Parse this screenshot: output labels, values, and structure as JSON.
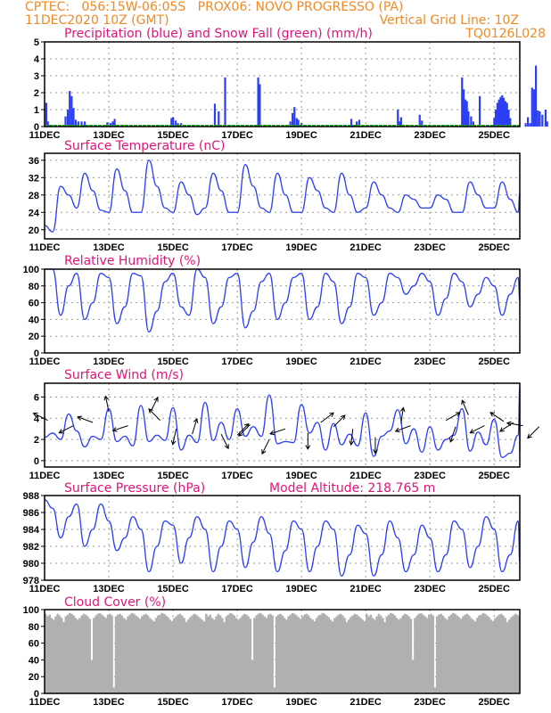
{
  "header": {
    "line1_left": "CPTEC:   056:15W-06:05S   PROX06: NOVO PROGRESSO (PA)",
    "line2_left": "11DEC2020 10Z (GMT)",
    "line2_right": "Vertical Grid Line: 10Z",
    "line3_right": "TQ0126L028",
    "model_altitude": "Model Altitude: 218.765 m"
  },
  "colors": {
    "header": "#f08a24",
    "title": "#e0157a",
    "line": "#2c3ff5",
    "snow": "#1fae1f",
    "cloud": "#b0b0b0",
    "arrow": "#000000"
  },
  "x_axis": {
    "start": "11DEC2020 10Z",
    "days_span": 14.8,
    "tick_days": [
      0,
      2,
      4,
      6,
      8,
      10,
      12,
      14
    ],
    "tick_labels": [
      "11DEC",
      "13DEC",
      "15DEC",
      "17DEC",
      "19DEC",
      "21DEC",
      "23DEC",
      "25DEC"
    ]
  },
  "chart_data": [
    {
      "type": "bar",
      "title": "Precipitation (blue) and Snow Fall (green) (mm/h)",
      "ylim": [
        0,
        5
      ],
      "yticks": [
        0,
        1,
        2,
        3,
        4,
        5
      ],
      "x_unit": "days since 11DEC 10Z",
      "bars": [
        [
          0.05,
          1.4
        ],
        [
          0.1,
          0.3
        ],
        [
          0.2,
          0.1
        ],
        [
          0.65,
          0.6
        ],
        [
          0.72,
          1.0
        ],
        [
          0.78,
          2.1
        ],
        [
          0.84,
          1.8
        ],
        [
          0.9,
          1.1
        ],
        [
          0.97,
          0.4
        ],
        [
          1.05,
          0.3
        ],
        [
          1.15,
          0.3
        ],
        [
          1.25,
          0.3
        ],
        [
          1.95,
          0.25
        ],
        [
          2.05,
          0.2
        ],
        [
          2.12,
          0.3
        ],
        [
          2.18,
          0.45
        ],
        [
          3.95,
          0.5
        ],
        [
          4.0,
          0.55
        ],
        [
          4.08,
          0.35
        ],
        [
          4.15,
          0.2
        ],
        [
          4.25,
          0.2
        ],
        [
          5.3,
          1.35
        ],
        [
          5.42,
          0.9
        ],
        [
          5.62,
          2.9
        ],
        [
          6.55,
          0.1
        ],
        [
          6.65,
          2.9
        ],
        [
          6.7,
          2.5
        ],
        [
          7.65,
          0.3
        ],
        [
          7.72,
          0.8
        ],
        [
          7.78,
          1.15
        ],
        [
          7.85,
          0.5
        ],
        [
          7.9,
          0.4
        ],
        [
          8.0,
          0.2
        ],
        [
          9.55,
          0.45
        ],
        [
          9.72,
          0.3
        ],
        [
          9.8,
          0.4
        ],
        [
          11.0,
          1.0
        ],
        [
          11.05,
          0.3
        ],
        [
          11.1,
          0.55
        ],
        [
          11.68,
          0.7
        ],
        [
          11.75,
          0.35
        ],
        [
          13.0,
          2.9
        ],
        [
          13.05,
          2.2
        ],
        [
          13.1,
          1.6
        ],
        [
          13.15,
          1.5
        ],
        [
          13.2,
          0.9
        ],
        [
          13.28,
          0.6
        ],
        [
          13.35,
          0.3
        ],
        [
          13.55,
          1.8
        ],
        [
          14.98,
          0.2
        ],
        [
          15.05,
          0.55
        ],
        [
          15.12,
          0.2
        ],
        [
          15.18,
          2.3
        ],
        [
          15.24,
          2.2
        ],
        [
          15.3,
          3.6
        ],
        [
          15.36,
          0.95
        ],
        [
          15.42,
          0.9
        ],
        [
          15.5,
          0.7
        ],
        [
          15.6,
          1.0
        ],
        [
          15.65,
          0.3
        ]
      ],
      "extra_bars": [
        [
          14.0,
          0.5
        ],
        [
          14.05,
          1.0
        ],
        [
          14.1,
          1.4
        ],
        [
          14.15,
          1.6
        ],
        [
          14.2,
          1.75
        ],
        [
          14.25,
          1.85
        ],
        [
          14.3,
          1.7
        ],
        [
          14.35,
          1.5
        ],
        [
          14.4,
          1.4
        ],
        [
          14.45,
          1.0
        ],
        [
          14.5,
          0.5
        ]
      ],
      "snow": "0 throughout"
    },
    {
      "type": "line",
      "title": "Surface Temperature (nC)",
      "ylim": [
        17.9,
        37.6
      ],
      "yticks": [
        20,
        24,
        28,
        32,
        36
      ],
      "step_days": 0.25,
      "values": [
        21,
        19.5,
        30,
        28,
        25,
        33,
        29,
        24.5,
        24,
        34,
        29,
        24,
        24,
        36,
        30,
        25,
        24,
        31,
        28,
        23.5,
        25,
        33,
        29,
        24,
        24,
        35,
        30,
        25,
        24,
        33,
        28,
        24,
        24,
        32,
        29,
        25,
        24,
        33,
        28,
        24,
        25,
        31,
        28,
        25,
        24,
        28,
        27,
        25,
        25,
        28,
        27,
        24,
        24,
        31,
        28,
        25,
        25,
        31,
        27,
        24,
        28.5
      ]
    },
    {
      "type": "line",
      "title": "Relative Humidity (%)",
      "ylim": [
        0,
        100
      ],
      "yticks": [
        0,
        20,
        40,
        60,
        80,
        100
      ],
      "step_days": 0.25,
      "values": [
        100,
        100,
        45,
        80,
        95,
        40,
        60,
        95,
        90,
        35,
        55,
        95,
        92,
        25,
        50,
        85,
        95,
        55,
        45,
        100,
        90,
        35,
        55,
        90,
        95,
        30,
        50,
        85,
        95,
        40,
        60,
        90,
        95,
        40,
        55,
        95,
        85,
        35,
        55,
        95,
        90,
        45,
        60,
        95,
        90,
        70,
        80,
        95,
        85,
        45,
        65,
        95,
        85,
        55,
        70,
        90,
        80,
        45,
        70,
        90,
        62
      ]
    },
    {
      "type": "line",
      "title": "Surface Wind (m/s)",
      "ylim": [
        -0.6,
        7.3
      ],
      "yticks": [
        0,
        2,
        4,
        6
      ],
      "step_days": 0.25,
      "values": [
        2.2,
        2.6,
        2.0,
        4.4,
        2.8,
        1.3,
        2.3,
        2.0,
        4.9,
        1.8,
        2.3,
        1.4,
        5.2,
        1.8,
        2.4,
        1.9,
        5.0,
        1.0,
        2.4,
        1.7,
        5.5,
        1.9,
        3.6,
        2.0,
        4.9,
        2.3,
        3.2,
        2.3,
        6.2,
        1.6,
        1.8,
        1.7,
        5.3,
        2.6,
        3.6,
        1.0,
        3.5,
        1.5,
        2.5,
        1.4,
        4.5,
        0.4,
        2.3,
        2.8,
        4.8,
        1.6,
        3.0,
        0.8,
        3.2,
        1.0,
        2.0,
        2.4,
        4.9,
        0.9,
        2.7,
        1.5,
        3.9,
        0.3,
        0.7,
        2.4,
        7.0,
        0.9,
        3.1
      ],
      "arrows": [
        [
          0.1,
          3.8,
          -1,
          0.5
        ],
        [
          0.9,
          3.3,
          -0.8,
          -0.4
        ],
        [
          1.5,
          3.6,
          -0.8,
          0.3
        ],
        [
          2.0,
          4.6,
          -0.2,
          1
        ],
        [
          2.6,
          3.3,
          -0.9,
          -0.3
        ],
        [
          3.3,
          4.6,
          0.5,
          1
        ],
        [
          3.6,
          3.8,
          -0.6,
          0.6
        ],
        [
          4.1,
          3.0,
          -0.2,
          -0.9
        ],
        [
          4.6,
          2.5,
          0.3,
          1
        ],
        [
          5.5,
          2.5,
          0.5,
          -1
        ],
        [
          6.0,
          2.4,
          0.5,
          0.5
        ],
        [
          6.4,
          3.4,
          -0.7,
          -0.7
        ],
        [
          7.0,
          2.0,
          -0.5,
          -1
        ],
        [
          7.5,
          3.0,
          -0.6,
          -0.2
        ],
        [
          8.2,
          2.6,
          0,
          -1
        ],
        [
          8.6,
          3.6,
          0.8,
          0.6
        ],
        [
          9.0,
          3.2,
          0.5,
          0.5
        ],
        [
          9.6,
          3.0,
          -0.1,
          -0.9
        ],
        [
          10.3,
          2.2,
          0,
          -1
        ],
        [
          11.1,
          3.5,
          0.1,
          0.7
        ],
        [
          11.4,
          3.3,
          -0.8,
          -0.3
        ],
        [
          12.5,
          3.8,
          0.9,
          0.5
        ],
        [
          12.8,
          3.2,
          -0.2,
          -0.6
        ],
        [
          13.2,
          4.3,
          -0.3,
          0.7
        ],
        [
          13.7,
          3.3,
          -1,
          -0.5
        ],
        [
          14.3,
          3.7,
          -0.3,
          0.2
        ],
        [
          14.6,
          3.6,
          -0.3,
          -0.2
        ],
        [
          14.9,
          3.3,
          -0.6,
          0.1
        ],
        [
          15.4,
          3.2,
          -1,
          -1
        ]
      ]
    },
    {
      "type": "line",
      "title": "Surface Pressure (hPa)",
      "ylim": [
        978,
        988
      ],
      "yticks": [
        978,
        980,
        982,
        984,
        986,
        988
      ],
      "step_days": 0.25,
      "values": [
        987.5,
        986.5,
        983,
        985.5,
        987,
        982,
        984,
        987,
        985,
        981.5,
        983,
        985.5,
        984,
        979,
        982,
        985,
        984.5,
        980,
        983,
        985.5,
        984,
        979,
        982,
        985,
        984,
        979.5,
        982.5,
        985.5,
        983.5,
        979,
        981.5,
        985,
        984,
        979,
        982,
        985,
        984,
        978.5,
        981,
        984.5,
        983.5,
        978.5,
        981,
        985,
        983,
        979,
        981,
        984.5,
        983,
        979,
        981,
        985,
        984,
        979.5,
        982,
        985.5,
        984,
        979,
        981,
        985,
        980
      ]
    },
    {
      "type": "bar",
      "title": "Cloud Cover (%)",
      "ylim": [
        0,
        100
      ],
      "yticks": [
        0,
        20,
        40,
        60,
        80,
        100
      ],
      "step_days": 0.0625,
      "values_pattern": "approx 85-97 with dips",
      "seed_values": [
        95,
        92,
        94,
        90,
        88,
        92,
        95,
        93,
        90,
        85,
        92,
        94,
        96,
        95,
        93,
        90,
        88,
        90,
        93,
        95,
        94,
        92,
        89,
        40,
        90,
        93,
        95,
        96,
        94,
        92,
        90,
        94,
        95,
        93,
        7,
        92,
        94,
        95,
        93,
        90,
        88,
        92,
        94,
        96,
        95,
        93,
        91,
        89,
        92,
        94,
        95,
        93,
        90,
        88,
        86,
        90,
        93,
        94,
        96,
        95,
        93,
        91,
        88,
        86,
        90,
        92,
        94,
        95,
        93,
        90,
        85,
        88,
        91,
        93,
        95,
        94,
        92,
        90,
        88,
        86
      ]
    }
  ]
}
